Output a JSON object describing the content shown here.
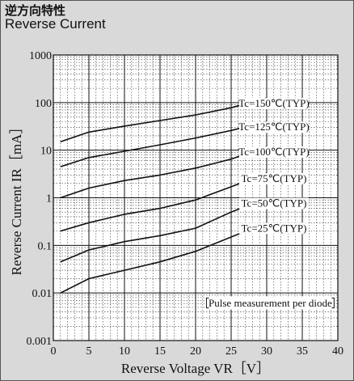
{
  "header": {
    "title_jp": "逆方向特性",
    "title_en": "Reverse Current"
  },
  "chart_data": {
    "type": "line",
    "title": "Reverse Current",
    "xlabel": "Reverse Voltage  VR［V］",
    "ylabel": "Reverse Current IR［mA］",
    "xlim": [
      0,
      40
    ],
    "ylim": [
      0.001,
      1000
    ],
    "yscale": "log",
    "grid": true,
    "x_ticks": [
      "0",
      "5",
      "10",
      "15",
      "20",
      "25",
      "30",
      "35",
      "40"
    ],
    "y_ticks": [
      "0.001",
      "0.01",
      "0.1",
      "1",
      "10",
      "100",
      "1000"
    ],
    "annotation": "Pulse measurement per diode",
    "series": [
      {
        "name": "Tc=150℃(TYP)",
        "x": [
          1,
          5,
          10,
          15,
          20,
          25,
          30
        ],
        "y": [
          15,
          24,
          32,
          42,
          55,
          78,
          125
        ]
      },
      {
        "name": "Tc=125℃(TYP)",
        "x": [
          1,
          5,
          10,
          15,
          20,
          25,
          30
        ],
        "y": [
          4.5,
          7,
          9.5,
          13,
          18,
          26,
          40
        ]
      },
      {
        "name": "Tc=100℃(TYP)",
        "x": [
          1,
          5,
          10,
          15,
          20,
          25,
          30
        ],
        "y": [
          1,
          1.6,
          2.3,
          3,
          4.2,
          6.5,
          12
        ]
      },
      {
        "name": "Tc=75℃(TYP)",
        "x": [
          1,
          5,
          10,
          15,
          20,
          25,
          30
        ],
        "y": [
          0.2,
          0.3,
          0.45,
          0.6,
          0.9,
          1.7,
          3.3
        ]
      },
      {
        "name": "Tc=50℃(TYP)",
        "x": [
          1,
          5,
          10,
          15,
          20,
          25,
          30
        ],
        "y": [
          0.045,
          0.08,
          0.12,
          0.16,
          0.23,
          0.5,
          1.0
        ]
      },
      {
        "name": "Tc=25℃(TYP)",
        "x": [
          1,
          5,
          10,
          15,
          20,
          25,
          30
        ],
        "y": [
          0.01,
          0.02,
          0.03,
          0.045,
          0.075,
          0.15,
          0.3
        ]
      }
    ]
  }
}
